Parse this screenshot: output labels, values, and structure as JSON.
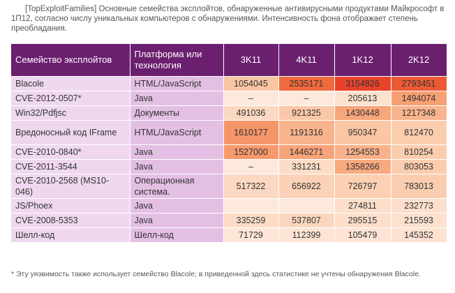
{
  "caption": "[TopExploitFamilies] Основные семейства эксплойтов, обнаруженные антивирусными продуктами Майкрософт в 1П12, согласно числу уникальных компьютеров с обнаружениями. Интенсивность фона отображает степень преобладания.",
  "table": {
    "headers": [
      "Семейство эксплойтов",
      "Платформа или технология",
      "3K11",
      "4K11",
      "1K12",
      "2K12"
    ],
    "rows": [
      {
        "name": "Blacole",
        "platform": "HTML/JavaScript",
        "values": [
          "1054045",
          "2535171",
          "3154826",
          "2793451"
        ],
        "colors": [
          "#f9c6a3",
          "#ef6a3c",
          "#e8432a",
          "#ec5a35"
        ]
      },
      {
        "name": "CVE-2012-0507*",
        "platform": "Java",
        "values": [
          "–",
          "–",
          "205613",
          "1494074"
        ],
        "colors": [
          "#fde9dc",
          "#fde9dc",
          "#fce1cf",
          "#f79f73"
        ]
      },
      {
        "name": "Win32/Pdfjsc",
        "platform": "Документы",
        "values": [
          "491036",
          "921325",
          "1430448",
          "1217348"
        ],
        "colors": [
          "#fbd8c1",
          "#fac8a8",
          "#f7a57a",
          "#f8b48c"
        ]
      },
      {
        "name": "Вредоносный код IFrame",
        "platform": "HTML/JavaScript",
        "values": [
          "1610177",
          "1191316",
          "950347",
          "812470"
        ],
        "colors": [
          "#f6946a",
          "#f8b48c",
          "#fac6a4",
          "#fbcdaf"
        ],
        "tall": true
      },
      {
        "name": "CVE-2010-0840*",
        "platform": "Java",
        "values": [
          "1527000",
          "1446271",
          "1254553",
          "810254"
        ],
        "colors": [
          "#f7996d",
          "#f7a47a",
          "#f8b18a",
          "#fbcdaf"
        ]
      },
      {
        "name": "CVE-2011-3544",
        "platform": "Java",
        "values": [
          "–",
          "331231",
          "1358266",
          "803053"
        ],
        "colors": [
          "#fde9dc",
          "#fcdcc7",
          "#f8a97f",
          "#fbcdaf"
        ]
      },
      {
        "name": "CVE-2010-2568 (MS10-046)",
        "platform": "Операционная система.",
        "values": [
          "517322",
          "656922",
          "726797",
          "783013"
        ],
        "colors": [
          "#fbd8c1",
          "#fbd2b7",
          "#fbd0b3",
          "#fbcdb0"
        ],
        "tall": true
      },
      {
        "name": "JS/Phoex",
        "platform": "Java",
        "values": [
          "",
          "",
          "274811",
          "232773"
        ],
        "colors": [
          "#fde9dc",
          "#fde9dc",
          "#fcdecb",
          "#fce0cd"
        ]
      },
      {
        "name": "CVE-2008-5353",
        "platform": "Java",
        "values": [
          "335259",
          "537807",
          "295515",
          "215593"
        ],
        "colors": [
          "#fcdcc7",
          "#fbd6be",
          "#fcdecb",
          "#fce1cf"
        ]
      },
      {
        "name": "Шелл-код",
        "platform": "Шелл-код",
        "values": [
          "71729",
          "112399",
          "105479",
          "145352"
        ],
        "colors": [
          "#fde6d7",
          "#fde4d4",
          "#fde4d5",
          "#fde2d2"
        ]
      }
    ]
  },
  "footnote": "* Эту уязвимость также использует семейство Blacole; в приведенной здесь статистике не учтены обнаружения Blacole."
}
